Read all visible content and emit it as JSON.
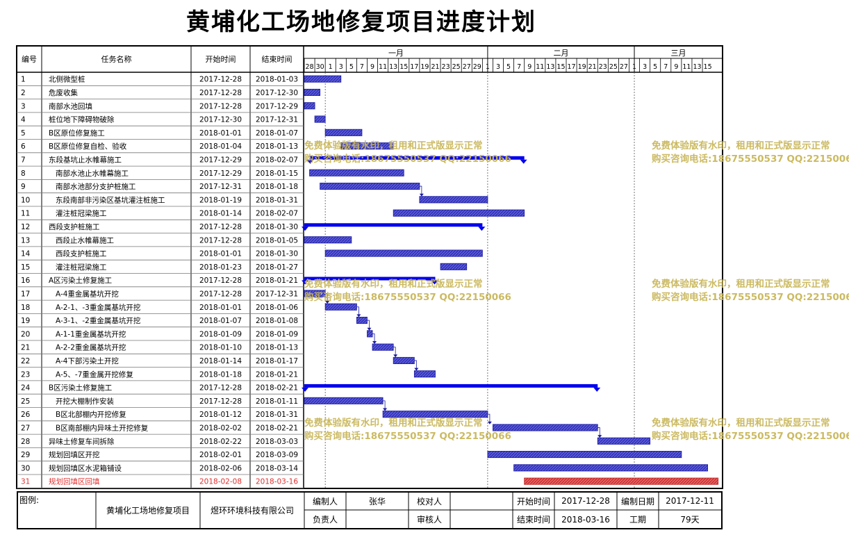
{
  "title": "黄埔化工场地修复项目进度计划",
  "columns": {
    "id": "编号",
    "name": "任务名称",
    "start": "开始时间",
    "end": "结束时间"
  },
  "timeline": {
    "months": [
      {
        "label": "一月",
        "start_day": 0
      },
      {
        "label": "二月",
        "start_day": 35
      },
      {
        "label": "三月",
        "start_day": 63
      }
    ],
    "day_labels": [
      "28",
      "30",
      "1",
      "3",
      "5",
      "7",
      "9",
      "11",
      "13",
      "15",
      "17",
      "19",
      "21",
      "23",
      "25",
      "27",
      "29",
      "1",
      "3",
      "5",
      "7",
      "9",
      "11",
      "13",
      "15",
      "17",
      "19",
      "21",
      "23",
      "25",
      "27",
      "1",
      "3",
      "5",
      "7",
      "9",
      "11",
      "13",
      "15"
    ],
    "origin_date": "2017-12-28",
    "end_date": "2018-03-16"
  },
  "chart_data": {
    "type": "gantt",
    "tasks": [
      {
        "id": "1",
        "name": "北侧微型桩",
        "start": "2017-12-28",
        "end": "2018-01-03",
        "indent": 0,
        "kind": "task"
      },
      {
        "id": "2",
        "name": "危废收集",
        "start": "2017-12-28",
        "end": "2017-12-30",
        "indent": 0,
        "kind": "task"
      },
      {
        "id": "3",
        "name": "南部水池回填",
        "start": "2017-12-28",
        "end": "2017-12-29",
        "indent": 0,
        "kind": "task"
      },
      {
        "id": "4",
        "name": "桩位地下障碍物破除",
        "start": "2017-12-30",
        "end": "2017-12-31",
        "indent": 0,
        "kind": "task"
      },
      {
        "id": "5",
        "name": "B区原位修复施工",
        "start": "2018-01-01",
        "end": "2018-01-07",
        "indent": 0,
        "kind": "task"
      },
      {
        "id": "6",
        "name": "B区原位修复自检、验收",
        "start": "2018-01-04",
        "end": "2018-01-13",
        "indent": 0,
        "kind": "task"
      },
      {
        "id": "7",
        "name": "东段基坑止水帷幕施工",
        "start": "2017-12-29",
        "end": "2018-02-07",
        "indent": 0,
        "kind": "summary"
      },
      {
        "id": "8",
        "name": "南部水池止水帷幕施工",
        "start": "2017-12-29",
        "end": "2018-01-15",
        "indent": 1,
        "kind": "task"
      },
      {
        "id": "9",
        "name": "南部水池部分支护桩施工",
        "start": "2017-12-31",
        "end": "2018-01-18",
        "indent": 1,
        "kind": "task"
      },
      {
        "id": "10",
        "name": "东段南部非污染区基坑灌注桩施工",
        "start": "2018-01-19",
        "end": "2018-01-31",
        "indent": 1,
        "kind": "task"
      },
      {
        "id": "11",
        "name": "灌注桩冠梁施工",
        "start": "2018-01-14",
        "end": "2018-02-07",
        "indent": 1,
        "kind": "task"
      },
      {
        "id": "12",
        "name": "西段支护桩施工",
        "start": "2017-12-28",
        "end": "2018-01-30",
        "indent": 0,
        "kind": "summary"
      },
      {
        "id": "13",
        "name": "西段止水帷幕施工",
        "start": "2017-12-28",
        "end": "2018-01-05",
        "indent": 1,
        "kind": "task"
      },
      {
        "id": "14",
        "name": "西段支护桩施工",
        "start": "2018-01-01",
        "end": "2018-01-30",
        "indent": 1,
        "kind": "task"
      },
      {
        "id": "15",
        "name": "灌注桩冠梁施工",
        "start": "2018-01-23",
        "end": "2018-01-27",
        "indent": 1,
        "kind": "task"
      },
      {
        "id": "16",
        "name": "A区污染土修复施工",
        "start": "2017-12-28",
        "end": "2018-01-21",
        "indent": 0,
        "kind": "summary"
      },
      {
        "id": "17",
        "name": "A-4重金属基坑开挖",
        "start": "2017-12-28",
        "end": "2017-12-31",
        "indent": 1,
        "kind": "task"
      },
      {
        "id": "18",
        "name": "A-2-1、-3重金属基坑开挖",
        "start": "2018-01-01",
        "end": "2018-01-06",
        "indent": 1,
        "kind": "task"
      },
      {
        "id": "19",
        "name": "A-3-1、-2重金属基坑开挖",
        "start": "2018-01-07",
        "end": "2018-01-08",
        "indent": 1,
        "kind": "task"
      },
      {
        "id": "20",
        "name": "A-1-1重金属基坑开挖",
        "start": "2018-01-09",
        "end": "2018-01-09",
        "indent": 1,
        "kind": "task"
      },
      {
        "id": "21",
        "name": "A-2-2重金属基坑开挖",
        "start": "2018-01-10",
        "end": "2018-01-13",
        "indent": 1,
        "kind": "task"
      },
      {
        "id": "22",
        "name": "A-4下部污染土开挖",
        "start": "2018-01-14",
        "end": "2018-01-17",
        "indent": 1,
        "kind": "task"
      },
      {
        "id": "23",
        "name": "A-5、-7重金属开挖修复",
        "start": "2018-01-18",
        "end": "2018-01-21",
        "indent": 1,
        "kind": "task"
      },
      {
        "id": "24",
        "name": "B区污染土修复施工",
        "start": "2017-12-28",
        "end": "2018-02-21",
        "indent": 0,
        "kind": "summary"
      },
      {
        "id": "25",
        "name": "开挖大棚制作安装",
        "start": "2017-12-28",
        "end": "2018-01-11",
        "indent": 1,
        "kind": "task"
      },
      {
        "id": "26",
        "name": "B区北部棚内开挖修复",
        "start": "2018-01-12",
        "end": "2018-01-31",
        "indent": 1,
        "kind": "task"
      },
      {
        "id": "27",
        "name": "B区南部棚内异味土开挖修复",
        "start": "2018-02-02",
        "end": "2018-02-21",
        "indent": 1,
        "kind": "task"
      },
      {
        "id": "28",
        "name": "异味土修复车间拆除",
        "start": "2018-02-22",
        "end": "2018-03-03",
        "indent": 0,
        "kind": "task"
      },
      {
        "id": "29",
        "name": "规划回填区开挖",
        "start": "2018-02-01",
        "end": "2018-03-09",
        "indent": 0,
        "kind": "task"
      },
      {
        "id": "30",
        "name": "规划回填区水泥箱铺设",
        "start": "2018-02-06",
        "end": "2018-03-14",
        "indent": 0,
        "kind": "task"
      },
      {
        "id": "31",
        "name": "规划回填区回填",
        "start": "2018-02-08",
        "end": "2018-03-16",
        "indent": 0,
        "kind": "critical"
      }
    ],
    "links": [
      [
        9,
        10
      ],
      [
        17,
        18
      ],
      [
        18,
        19
      ],
      [
        19,
        20
      ],
      [
        20,
        21
      ],
      [
        21,
        22
      ],
      [
        22,
        23
      ],
      [
        25,
        26
      ],
      [
        26,
        27
      ],
      [
        27,
        28
      ]
    ]
  },
  "footer": {
    "legend_label": "图例:",
    "project_name": "黄埔化工场地修复项目",
    "company": "煜环环境科技有限公司",
    "compiler_label": "编制人",
    "compiler": "张华",
    "checker_label": "校对人",
    "checker": "",
    "responsible_label": "负责人",
    "responsible": "",
    "reviewer_label": "审核人",
    "reviewer": "",
    "start_label": "开始时间",
    "start_value": "2017-12-28",
    "end_label": "结束时间",
    "end_value": "2018-03-16",
    "compile_date_label": "编制日期",
    "compile_date": "2017-12-11",
    "duration_label": "工期",
    "duration": "79天"
  },
  "watermark": {
    "line1": "免费体验版有水印，租用和正式版显示正常",
    "line2": "购买咨询电话:18675550537 QQ:22150066"
  },
  "colors": {
    "bar": "#2020c0",
    "summary": "#0000ee",
    "critical": "#e03030",
    "watermark": "#c9b75a"
  }
}
